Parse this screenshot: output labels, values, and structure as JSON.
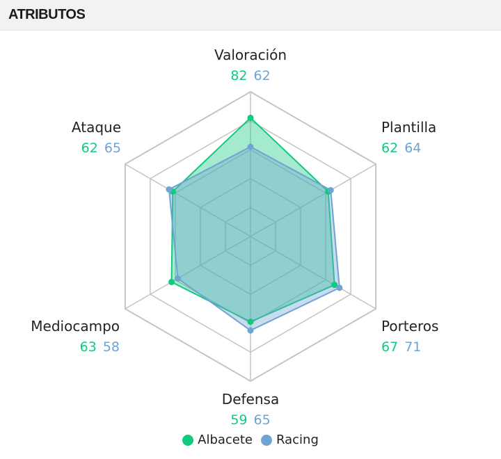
{
  "header": {
    "title": "ATRIBUTOS"
  },
  "colors": {
    "albacete": "#11c97f",
    "racing": "#6fa3d3",
    "grid": "#c4c4c4"
  },
  "chart_data": {
    "type": "radar",
    "title": "",
    "range": [
      0,
      100
    ],
    "grid_levels": 5,
    "legend_position": "bottom-center",
    "axes": [
      "Valoración",
      "Plantilla",
      "Porteros",
      "Defensa",
      "Mediocampo",
      "Ataque"
    ],
    "series": [
      {
        "name": "Albacete",
        "values": [
          82,
          62,
          67,
          59,
          63,
          62
        ]
      },
      {
        "name": "Racing",
        "values": [
          62,
          64,
          71,
          65,
          58,
          65
        ]
      }
    ]
  }
}
